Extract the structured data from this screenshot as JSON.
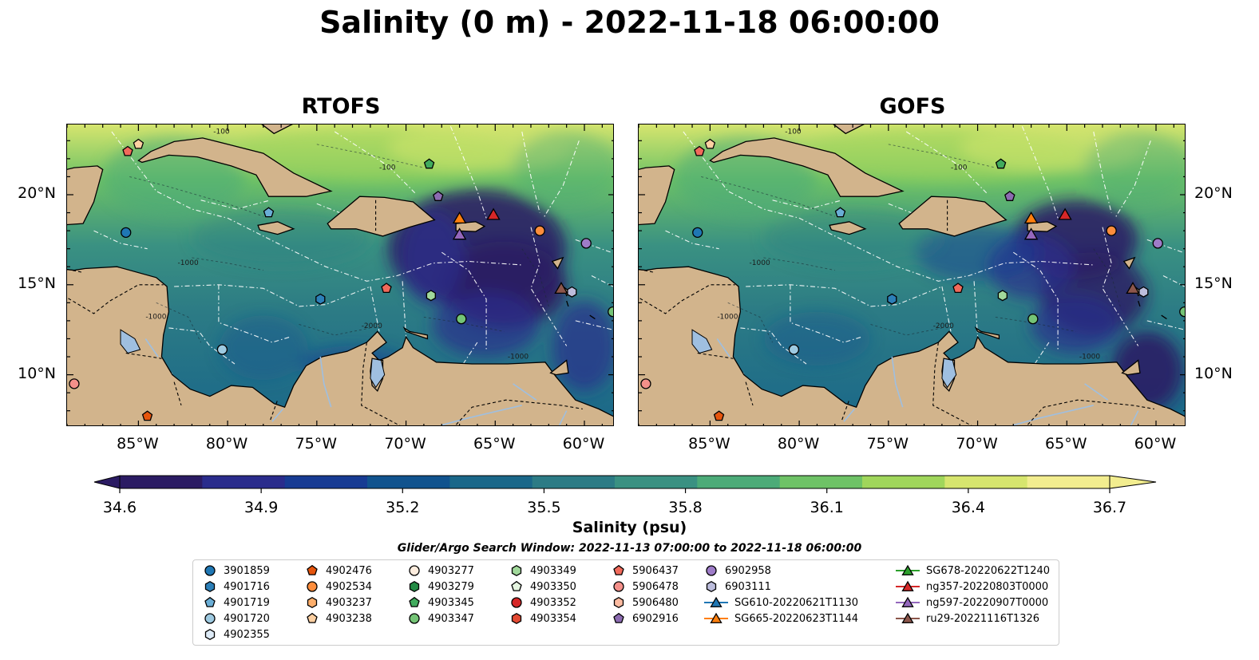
{
  "title": "Salinity (0 m) - 2022-11-18 06:00:00",
  "panels": [
    {
      "name": "RTOFS"
    },
    {
      "name": "GOFS"
    }
  ],
  "axes": {
    "lon_ticks": [
      "85°W",
      "80°W",
      "75°W",
      "70°W",
      "65°W",
      "60°W"
    ],
    "lat_ticks": [
      "20°N",
      "15°N",
      "10°N"
    ],
    "lon_range": [
      -89,
      -58.3
    ],
    "lat_range": [
      7.1,
      23.9
    ]
  },
  "map_labels": [
    "-100",
    "-100",
    "-1000",
    "-1000",
    "-2000",
    "-1000"
  ],
  "colorbar": {
    "label": "Salinity (psu)",
    "ticks": [
      "34.6",
      "34.9",
      "35.2",
      "35.5",
      "35.8",
      "36.1",
      "36.4",
      "36.7"
    ],
    "range": [
      34.6,
      36.7
    ],
    "colors": [
      "#2b1b63",
      "#2a2c8c",
      "#173b93",
      "#11538e",
      "#1a6789",
      "#2c7b85",
      "#3a9182",
      "#4cab78",
      "#6ec266",
      "#a0d65b",
      "#d6e56e",
      "#f2ed8f"
    ]
  },
  "search_window": "Glider/Argo Search Window: 2022-11-13 07:00:00 to 2022-11-18 06:00:00",
  "legend": {
    "columns": [
      [
        {
          "label": "3901859",
          "shape": "circle",
          "color": "#1f77b4"
        },
        {
          "label": "4901716",
          "shape": "hexagon",
          "color": "#2c7fb8"
        },
        {
          "label": "4901719",
          "shape": "pentagon",
          "color": "#6aaed6"
        },
        {
          "label": "4901720",
          "shape": "circle",
          "color": "#9ecae1"
        },
        {
          "label": "4902355",
          "shape": "hexagon",
          "color": "#deebf7"
        }
      ],
      [
        {
          "label": "4902476",
          "shape": "pentagon",
          "color": "#e6550d"
        },
        {
          "label": "4902534",
          "shape": "circle",
          "color": "#fd8d3c"
        },
        {
          "label": "4903237",
          "shape": "hexagon",
          "color": "#fdae6b"
        },
        {
          "label": "4903238",
          "shape": "pentagon",
          "color": "#fdd0a2"
        }
      ],
      [
        {
          "label": "4903277",
          "shape": "circle",
          "color": "#feedde"
        },
        {
          "label": "4903279",
          "shape": "hexagon",
          "color": "#238b45"
        },
        {
          "label": "4903345",
          "shape": "pentagon",
          "color": "#41ab5d"
        },
        {
          "label": "4903347",
          "shape": "circle",
          "color": "#74c476"
        }
      ],
      [
        {
          "label": "4903349",
          "shape": "hexagon",
          "color": "#a1d99b"
        },
        {
          "label": "4903350",
          "shape": "pentagon",
          "color": "#e5f5e0"
        },
        {
          "label": "4903352",
          "shape": "circle",
          "color": "#d62728"
        },
        {
          "label": "4903354",
          "shape": "hexagon",
          "color": "#e34a33"
        }
      ],
      [
        {
          "label": "5906437",
          "shape": "pentagon",
          "color": "#f16a5b"
        },
        {
          "label": "5906478",
          "shape": "circle",
          "color": "#f4908a"
        },
        {
          "label": "5906480",
          "shape": "hexagon",
          "color": "#fcbba1"
        },
        {
          "label": "6902916",
          "shape": "pentagon",
          "color": "#8c6bb1"
        }
      ],
      [
        {
          "label": "6902958",
          "shape": "circle",
          "color": "#9e7cc8"
        },
        {
          "label": "6903111",
          "shape": "hexagon",
          "color": "#bcbddc"
        },
        {
          "label": "SG610-20220621T1130",
          "shape": "triangle",
          "color": "#1f77b4"
        },
        {
          "label": "SG665-20220623T1144",
          "shape": "triangle",
          "color": "#ff7f0e"
        }
      ],
      [
        {
          "label": "SG678-20220622T1240",
          "shape": "triangle",
          "color": "#2ca02c"
        },
        {
          "label": "ng357-20220803T0000",
          "shape": "triangle",
          "color": "#d62728"
        },
        {
          "label": "ng597-20220907T0000",
          "shape": "triangle",
          "color": "#9467bd"
        },
        {
          "label": "ru29-20221116T1326",
          "shape": "triangle",
          "color": "#8c564b"
        }
      ]
    ]
  },
  "markers": [
    {
      "id": "5906437",
      "lon": -85.6,
      "lat": 22.4
    },
    {
      "id": "4903238",
      "lon": -85.0,
      "lat": 22.8
    },
    {
      "id": "4903345",
      "lon": -68.7,
      "lat": 21.7
    },
    {
      "id": "6902916",
      "lon": -68.2,
      "lat": 19.9
    },
    {
      "id": "4901719",
      "lon": -77.7,
      "lat": 19.0
    },
    {
      "id": "3901859",
      "lon": -85.7,
      "lat": 17.9
    },
    {
      "id": "4902534",
      "lon": -62.5,
      "lat": 18.0
    },
    {
      "id": "6902958",
      "lon": -59.9,
      "lat": 17.3
    },
    {
      "id": "4901716",
      "lon": -74.8,
      "lat": 14.2
    },
    {
      "id": "5906437",
      "lon": -71.1,
      "lat": 14.8
    },
    {
      "id": "4903349",
      "lon": -68.6,
      "lat": 14.4
    },
    {
      "id": "6903111",
      "lon": -60.7,
      "lat": 14.6
    },
    {
      "id": "4903347",
      "lon": -66.9,
      "lat": 13.1
    },
    {
      "id": "4903347",
      "lon": -58.4,
      "lat": 13.5
    },
    {
      "id": "4901720",
      "lon": -80.3,
      "lat": 11.4
    },
    {
      "id": "5906478",
      "lon": -88.6,
      "lat": 9.5
    },
    {
      "id": "4902476",
      "lon": -84.5,
      "lat": 7.7
    }
  ],
  "gliders": [
    {
      "id": "SG665-20220623T1144",
      "lon": -67.0,
      "lat": 18.7
    },
    {
      "id": "ng357-20220803T0000",
      "lon": -65.1,
      "lat": 18.9
    },
    {
      "id": "ng597-20220907T0000",
      "lon": -67.0,
      "lat": 17.8
    },
    {
      "id": "ru29-20221116T1326",
      "lon": -61.3,
      "lat": 14.8
    }
  ]
}
